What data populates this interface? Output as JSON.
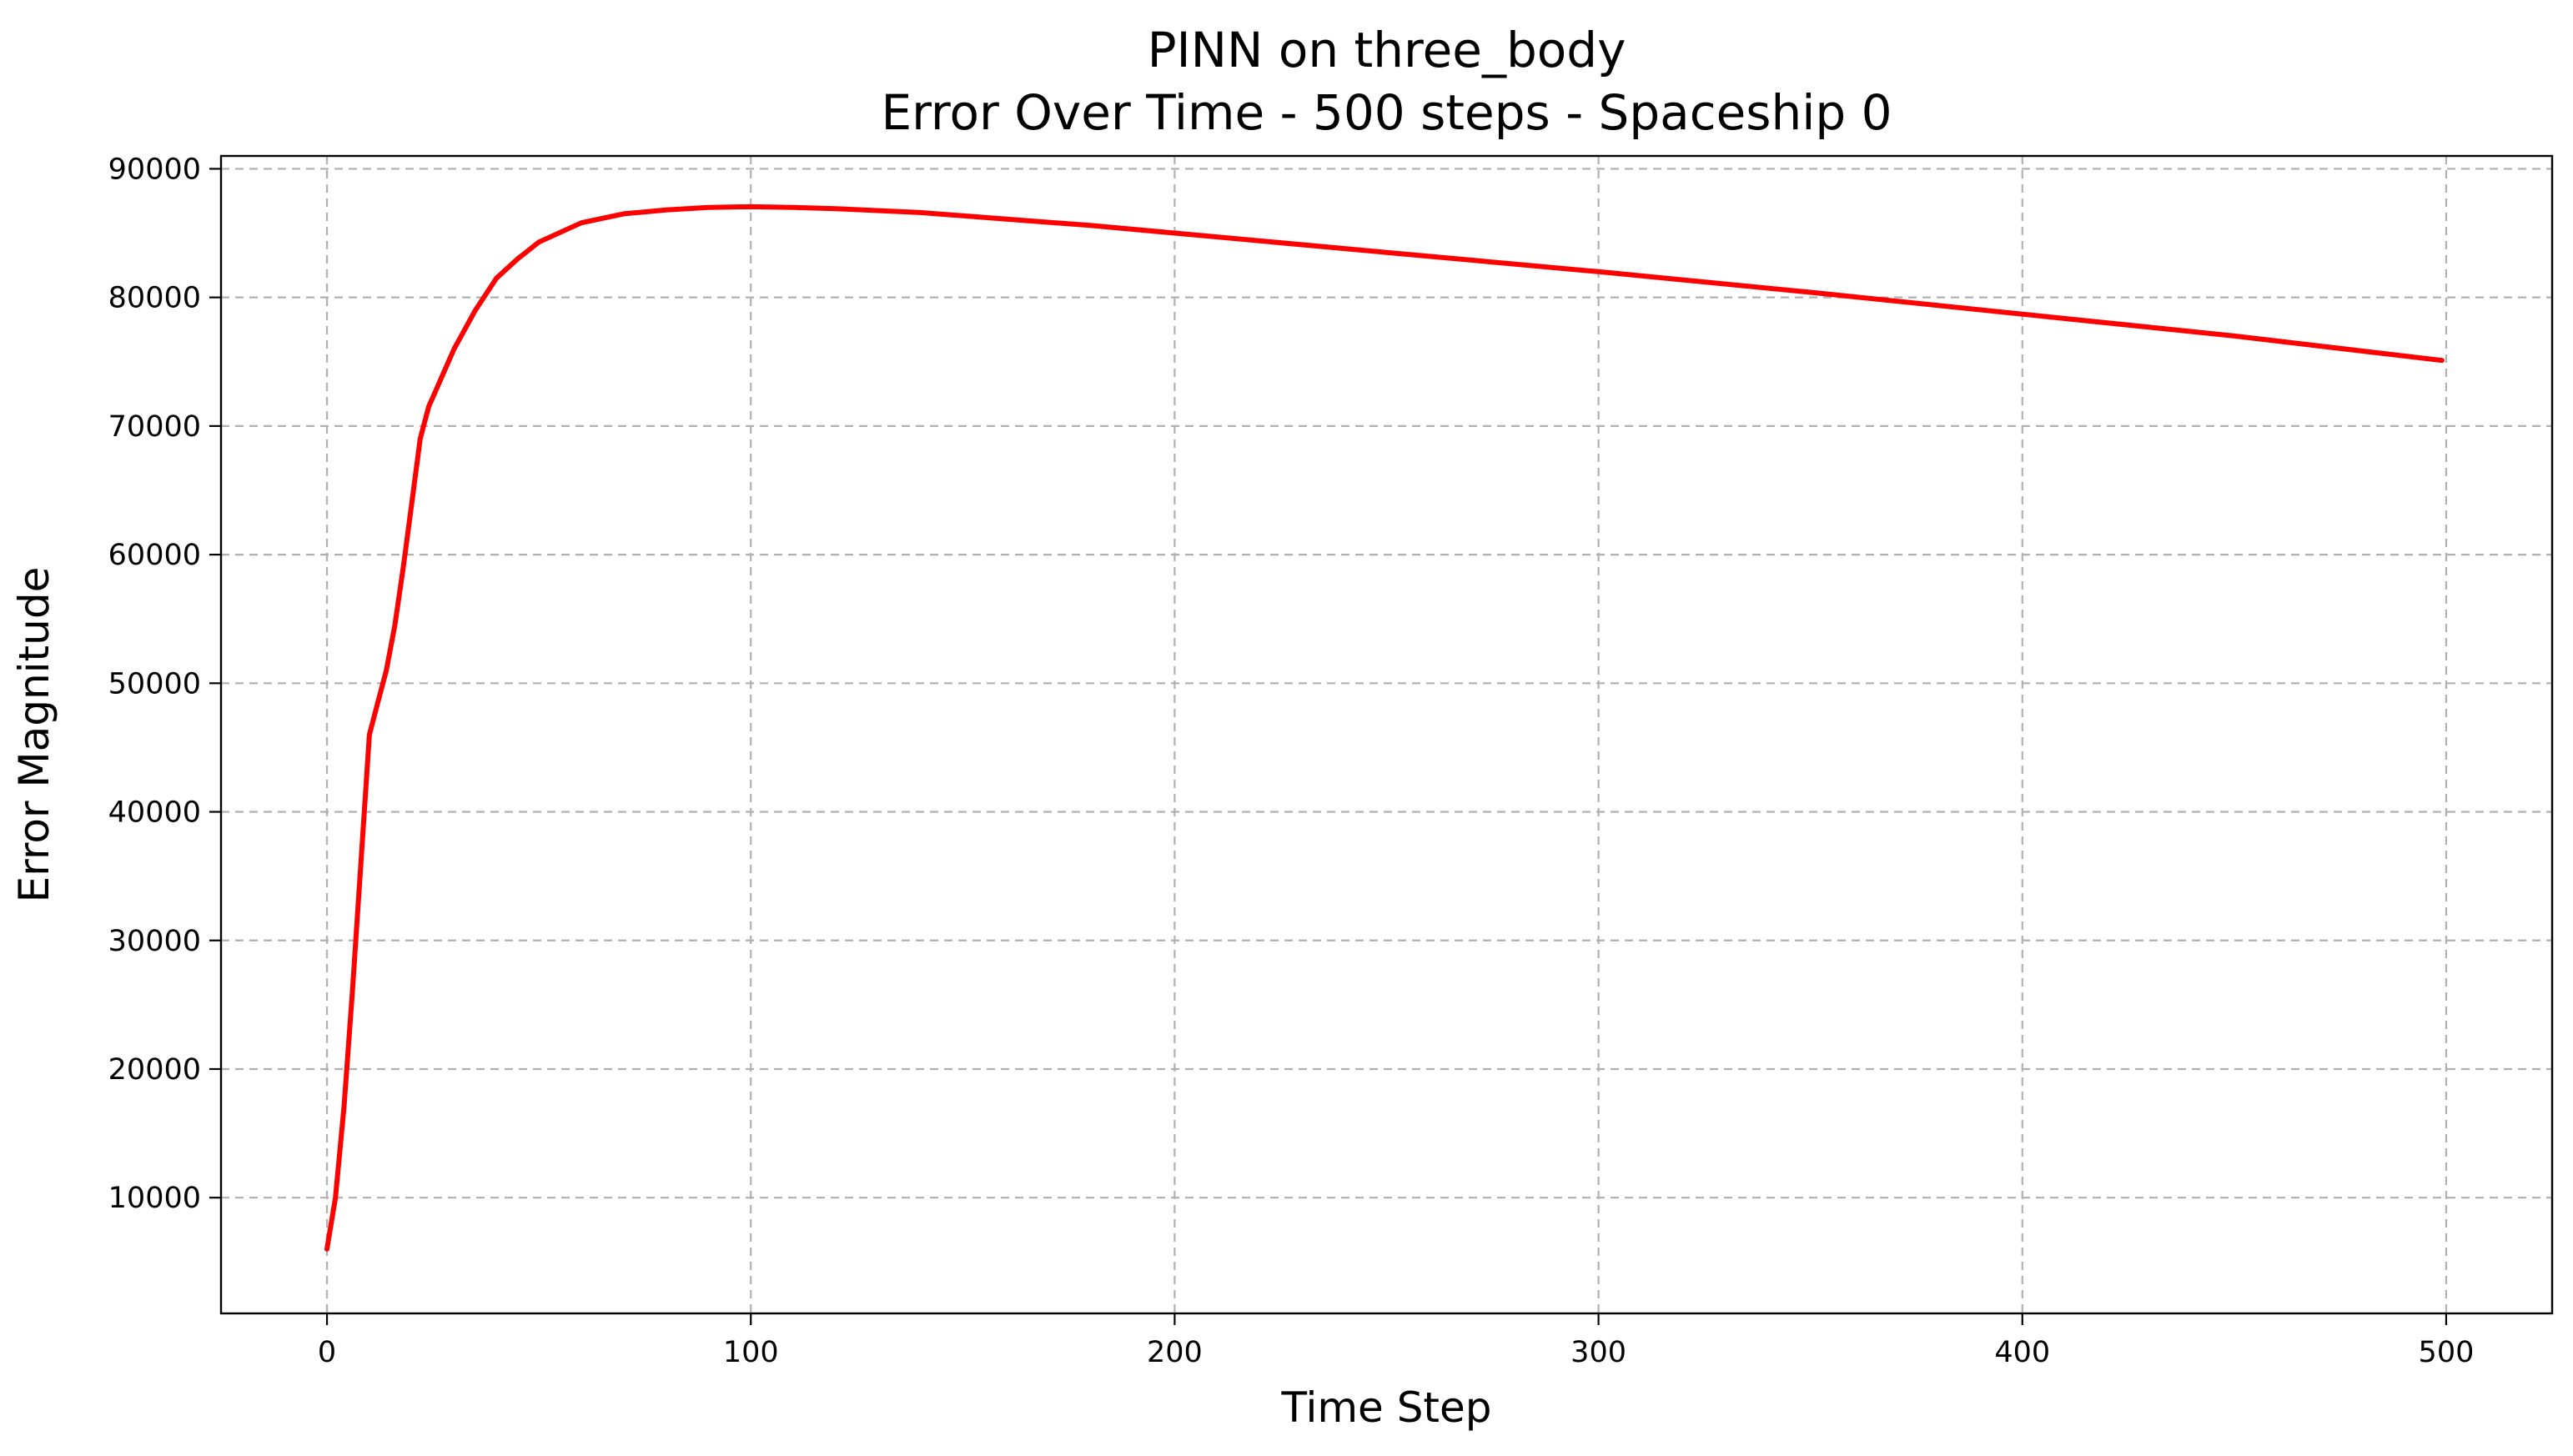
{
  "chart_data": {
    "type": "line",
    "title_line1": "PINN on three_body",
    "title_line2": "Error Over Time - 500 steps - Spaceship 0",
    "xlabel": "Time Step",
    "ylabel": "Error Magnitude",
    "xlim": [
      -25,
      525
    ],
    "ylim": [
      1000,
      91000
    ],
    "xticks": [
      0,
      100,
      200,
      300,
      400,
      500
    ],
    "yticks": [
      10000,
      20000,
      30000,
      40000,
      50000,
      60000,
      70000,
      80000,
      90000
    ],
    "grid": true,
    "line_color": "#ff0000",
    "series": [
      {
        "x": [
          0,
          2,
          4,
          6,
          8,
          10,
          12,
          14,
          16,
          18,
          20,
          22,
          24,
          26,
          28,
          30,
          35,
          40,
          45,
          50,
          60,
          70,
          80,
          90,
          100,
          110,
          120,
          140,
          160,
          180,
          200,
          250,
          300,
          350,
          400,
          450,
          499
        ],
        "values": [
          6000,
          10000,
          17000,
          26000,
          36000,
          46000,
          48500,
          51000,
          54500,
          59000,
          64000,
          69000,
          71500,
          73000,
          74500,
          76000,
          79000,
          81500,
          83000,
          84300,
          85800,
          86500,
          86800,
          87000,
          87050,
          87000,
          86900,
          86600,
          86100,
          85600,
          85000,
          83500,
          82000,
          80400,
          78700,
          77000,
          75100
        ]
      }
    ]
  }
}
